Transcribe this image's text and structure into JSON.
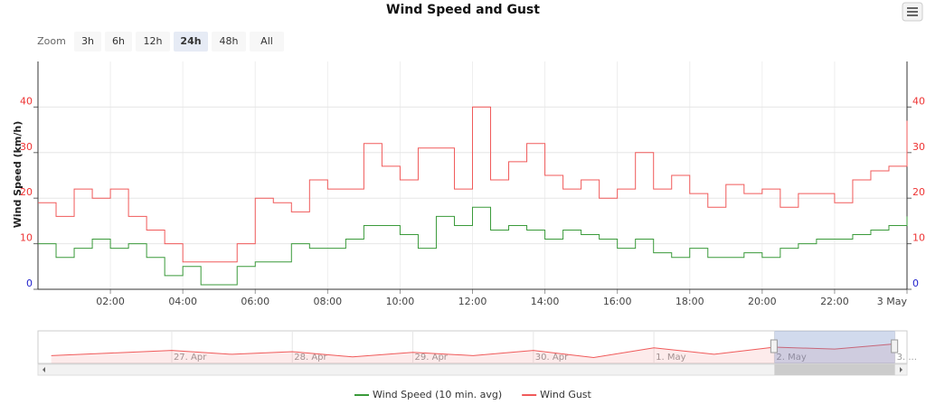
{
  "chart_data": {
    "type": "step-line",
    "title": "Wind Speed and Gust",
    "zoom": {
      "label": "Zoom",
      "buttons": [
        "3h",
        "6h",
        "12h",
        "24h",
        "48h",
        "All"
      ],
      "selected": "24h"
    },
    "y_label": "Wind Speed (km/h)",
    "x": [
      0,
      0.5,
      1,
      1.5,
      2,
      2.5,
      3,
      3.5,
      4,
      4.5,
      5,
      5.5,
      6,
      6.5,
      7,
      7.5,
      8,
      8.5,
      9,
      9.5,
      10,
      10.5,
      11,
      11.5,
      12,
      12.5,
      13,
      13.5,
      14,
      14.5,
      15,
      15.5,
      16,
      16.5,
      17,
      17.5,
      18,
      18.5,
      19,
      19.5,
      20,
      20.5,
      21,
      21.5,
      22,
      22.5,
      23,
      23.5,
      24
    ],
    "xlim": [
      0,
      24
    ],
    "xticks": [
      {
        "value": 2,
        "label": "02:00"
      },
      {
        "value": 4,
        "label": "04:00"
      },
      {
        "value": 6,
        "label": "06:00"
      },
      {
        "value": 8,
        "label": "08:00"
      },
      {
        "value": 10,
        "label": "10:00"
      },
      {
        "value": 12,
        "label": "12:00"
      },
      {
        "value": 14,
        "label": "14:00"
      },
      {
        "value": 16,
        "label": "16:00"
      },
      {
        "value": 18,
        "label": "18:00"
      },
      {
        "value": 20,
        "label": "20:00"
      },
      {
        "value": 22,
        "label": "22:00"
      },
      {
        "value": 24,
        "label": "3 May"
      }
    ],
    "ylim": [
      0,
      50
    ],
    "yticks": [
      0,
      10,
      20,
      30,
      40
    ],
    "y2lim": [
      0,
      50
    ],
    "y2ticks": [
      0,
      10,
      20,
      30,
      40
    ],
    "grid": true,
    "series": [
      {
        "name": "Wind Speed (10 min. avg)",
        "color": "#3a9a3a",
        "values": [
          10,
          7,
          9,
          11,
          9,
          10,
          7,
          3,
          5,
          1,
          1,
          5,
          6,
          6,
          10,
          9,
          9,
          11,
          14,
          14,
          12,
          9,
          16,
          14,
          18,
          13,
          14,
          13,
          11,
          13,
          12,
          11,
          9,
          11,
          8,
          7,
          9,
          7,
          7,
          8,
          7,
          9,
          10,
          11,
          11,
          12,
          13,
          14,
          16
        ]
      },
      {
        "name": "Wind Gust",
        "color": "#f05a5a",
        "values": [
          19,
          16,
          22,
          20,
          22,
          16,
          13,
          10,
          6,
          6,
          6,
          10,
          20,
          19,
          17,
          24,
          22,
          22,
          32,
          27,
          24,
          31,
          31,
          22,
          40,
          24,
          28,
          32,
          25,
          22,
          24,
          20,
          22,
          30,
          22,
          25,
          21,
          18,
          23,
          21,
          22,
          18,
          21,
          21,
          19,
          24,
          26,
          27,
          37
        ]
      }
    ],
    "navigator": {
      "x": [
        -1,
        -0.5,
        0,
        0.5,
        1,
        1.5,
        2,
        2.5,
        3,
        3.5,
        4,
        4.5,
        5,
        5.5,
        6
      ],
      "values": [
        12,
        16,
        20,
        14,
        18,
        10,
        17,
        12,
        20,
        9,
        24,
        14,
        25,
        22,
        30
      ],
      "xlim": [
        -1.11,
        6.1
      ],
      "ylim": [
        0,
        50
      ],
      "xticks": [
        {
          "value": 0,
          "label": "27. Apr"
        },
        {
          "value": 1,
          "label": "28. Apr"
        },
        {
          "value": 2,
          "label": "29. Apr"
        },
        {
          "value": 3,
          "label": "30. Apr"
        },
        {
          "value": 4,
          "label": "1. May"
        },
        {
          "value": 5,
          "label": "2. May"
        },
        {
          "value": 6,
          "label": "3. ..."
        }
      ],
      "range": [
        5,
        6
      ]
    }
  }
}
